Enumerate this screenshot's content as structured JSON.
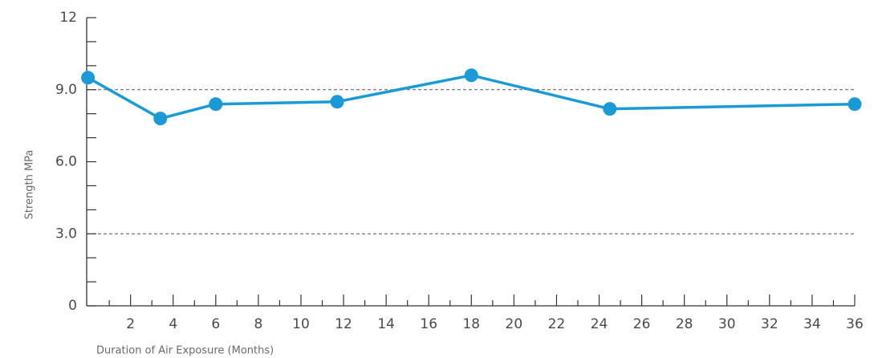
{
  "chart_data": {
    "type": "line",
    "xlabel": "Duration of Air Exposure (Months)",
    "ylabel": "Strength MPa",
    "series": [
      {
        "name": "Strength",
        "color": "#1a9ad6",
        "x": [
          0,
          3.4,
          6,
          11.7,
          18,
          24.5,
          36
        ],
        "values": [
          9.5,
          7.8,
          8.4,
          8.5,
          9.6,
          8.2,
          8.4
        ]
      }
    ],
    "xlim": [
      0,
      36
    ],
    "xticks": [
      2,
      4,
      6,
      8,
      10,
      12,
      14,
      16,
      18,
      20,
      22,
      24,
      26,
      28,
      30,
      32,
      34,
      36
    ],
    "xminor_ticks": [
      1,
      3,
      5,
      7,
      9,
      11,
      13,
      15,
      17,
      19,
      21,
      23,
      25,
      27,
      29,
      31,
      33,
      35
    ],
    "ylim": [
      0,
      12
    ],
    "yticks": [
      0,
      {
        "value": 3,
        "label": "3.0"
      },
      {
        "value": 6,
        "label": "6.0"
      },
      {
        "value": 9,
        "label": "9.0"
      },
      12
    ],
    "yminor_ticks": [
      1,
      2,
      4,
      5,
      7,
      8,
      10,
      11
    ],
    "grid_lines": [
      3,
      9
    ]
  }
}
